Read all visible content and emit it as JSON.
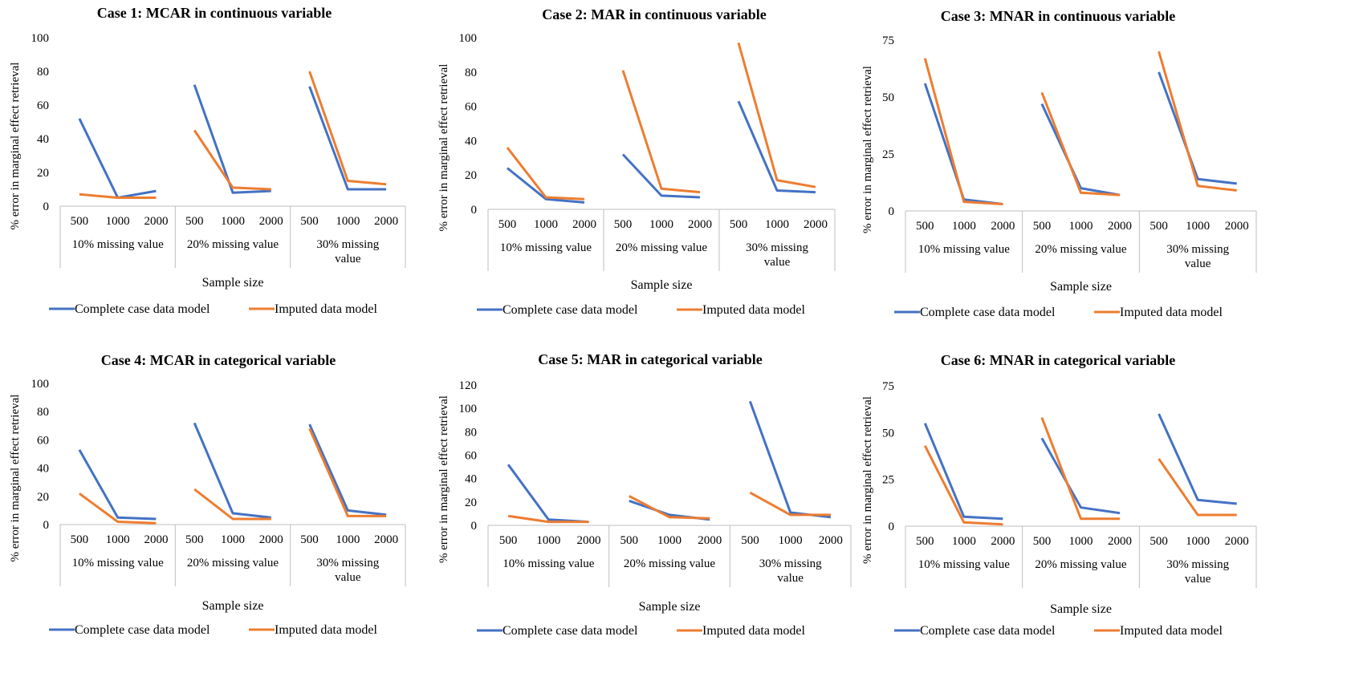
{
  "figure": {
    "common": {
      "ylabel": "% error in marginal effect retrieval",
      "xlabel": "Sample size",
      "sizes": [
        "500",
        "1000",
        "2000"
      ],
      "groups": [
        [
          "10% missing value"
        ],
        [
          "20% missing value"
        ],
        [
          "30% missing",
          "value"
        ]
      ],
      "legend": [
        "Complete case data model",
        "Imputed data model"
      ],
      "colors": {
        "complete": "#4472C4",
        "imputed": "#ED7D31",
        "axis": "#BFBFBF"
      }
    }
  },
  "chart_data": [
    {
      "type": "line",
      "title": "Case 1: MCAR in continuous  variable",
      "xlabel": "Sample size",
      "ylabel": "% error in marginal effect retrieval",
      "categories": [
        "500",
        "1000",
        "2000",
        "500",
        "1000",
        "2000",
        "500",
        "1000",
        "2000"
      ],
      "ylim": [
        0,
        100
      ],
      "yticks": [
        0,
        20,
        40,
        60,
        80,
        100
      ],
      "series": [
        {
          "name": "Complete case data model",
          "groups": [
            [
              52,
              5,
              9
            ],
            [
              72,
              8,
              9
            ]
          ],
          "last": [
            71,
            10,
            10
          ]
        },
        {
          "name": "Imputed data model",
          "groups": [
            [
              7,
              5,
              5
            ],
            [
              45,
              11,
              10
            ]
          ],
          "last": [
            80,
            15,
            13
          ]
        }
      ]
    },
    {
      "type": "line",
      "title": "Case 2: MAR in continuous  variable",
      "xlabel": "Sample size",
      "ylabel": "% error in marginal effect retrieval",
      "categories": [
        "500",
        "1000",
        "2000",
        "500",
        "1000",
        "2000",
        "500",
        "1000",
        "2000"
      ],
      "ylim": [
        0,
        100
      ],
      "yticks": [
        0,
        20,
        40,
        60,
        80,
        100
      ],
      "series": [
        {
          "name": "Complete case data model",
          "groups": [
            [
              24,
              6,
              4
            ],
            [
              32,
              8,
              7
            ]
          ],
          "last": [
            63,
            11,
            10
          ]
        },
        {
          "name": "Imputed data model",
          "groups": [
            [
              36,
              7,
              6
            ],
            [
              81,
              12,
              10
            ]
          ],
          "last": [
            97,
            17,
            13
          ]
        }
      ]
    },
    {
      "type": "line",
      "title": "Case 3: MNAR in continuous  variable",
      "xlabel": "Sample size",
      "ylabel": "% error in marginal effect retrieval",
      "categories": [
        "500",
        "1000",
        "2000",
        "500",
        "1000",
        "2000",
        "500",
        "1000",
        "2000"
      ],
      "ylim": [
        0,
        75
      ],
      "yticks": [
        0,
        25,
        50,
        75
      ],
      "series": [
        {
          "name": "Complete case data model",
          "groups": [
            [
              56,
              5,
              3
            ],
            [
              47,
              10,
              7
            ]
          ],
          "last": [
            61,
            14,
            12
          ]
        },
        {
          "name": "Imputed data model",
          "groups": [
            [
              67,
              4,
              3
            ],
            [
              52,
              8,
              7
            ]
          ],
          "last": [
            70,
            11,
            9
          ]
        }
      ]
    },
    {
      "type": "line",
      "title": "Case 4: MCAR in categorical  variable",
      "xlabel": "Sample size",
      "ylabel": "% error in marginal effect retrieval",
      "categories": [
        "500",
        "1000",
        "2000",
        "500",
        "1000",
        "2000",
        "500",
        "1000",
        "2000"
      ],
      "ylim": [
        0,
        100
      ],
      "yticks": [
        0,
        20,
        40,
        60,
        80,
        100
      ],
      "series": [
        {
          "name": "Complete case data model",
          "groups": [
            [
              53,
              5,
              4
            ],
            [
              72,
              8,
              5
            ]
          ],
          "last": [
            71,
            10,
            7
          ]
        },
        {
          "name": "Imputed data model",
          "groups": [
            [
              22,
              2,
              1
            ],
            [
              25,
              4,
              4
            ]
          ],
          "last": [
            68,
            6,
            6
          ]
        }
      ]
    },
    {
      "type": "line",
      "title": "Case 5: MAR in categorical  variable",
      "xlabel": "Sample size",
      "ylabel": "% error in marginal effect retrieval",
      "categories": [
        "500",
        "1000",
        "2000",
        "500",
        "1000",
        "2000",
        "500",
        "1000",
        "2000"
      ],
      "ylim": [
        0,
        120
      ],
      "yticks": [
        0,
        20,
        40,
        60,
        80,
        100,
        120
      ],
      "series": [
        {
          "name": "Complete case data model",
          "groups": [
            [
              52,
              5,
              3
            ],
            [
              21,
              9,
              5
            ]
          ],
          "last": [
            106,
            11,
            7
          ]
        },
        {
          "name": "Imputed data model",
          "groups": [
            [
              8,
              3,
              3
            ],
            [
              25,
              7,
              6
            ]
          ],
          "last": [
            28,
            9,
            9
          ]
        }
      ]
    },
    {
      "type": "line",
      "title": "Case 6: MNAR in categorical  variable",
      "xlabel": "Sample size",
      "ylabel": "% error in marginal effect retrieval",
      "categories": [
        "500",
        "1000",
        "2000",
        "500",
        "1000",
        "2000",
        "500",
        "1000",
        "2000"
      ],
      "ylim": [
        0,
        75
      ],
      "yticks": [
        0,
        25,
        50,
        75
      ],
      "series": [
        {
          "name": "Complete case data model",
          "groups": [
            [
              55,
              5,
              4
            ],
            [
              47,
              10,
              7
            ]
          ],
          "last": [
            60,
            14,
            12
          ]
        },
        {
          "name": "Imputed data model",
          "groups": [
            [
              43,
              2,
              1
            ],
            [
              58,
              4,
              4
            ]
          ],
          "last": [
            36,
            6,
            6
          ]
        }
      ]
    }
  ]
}
